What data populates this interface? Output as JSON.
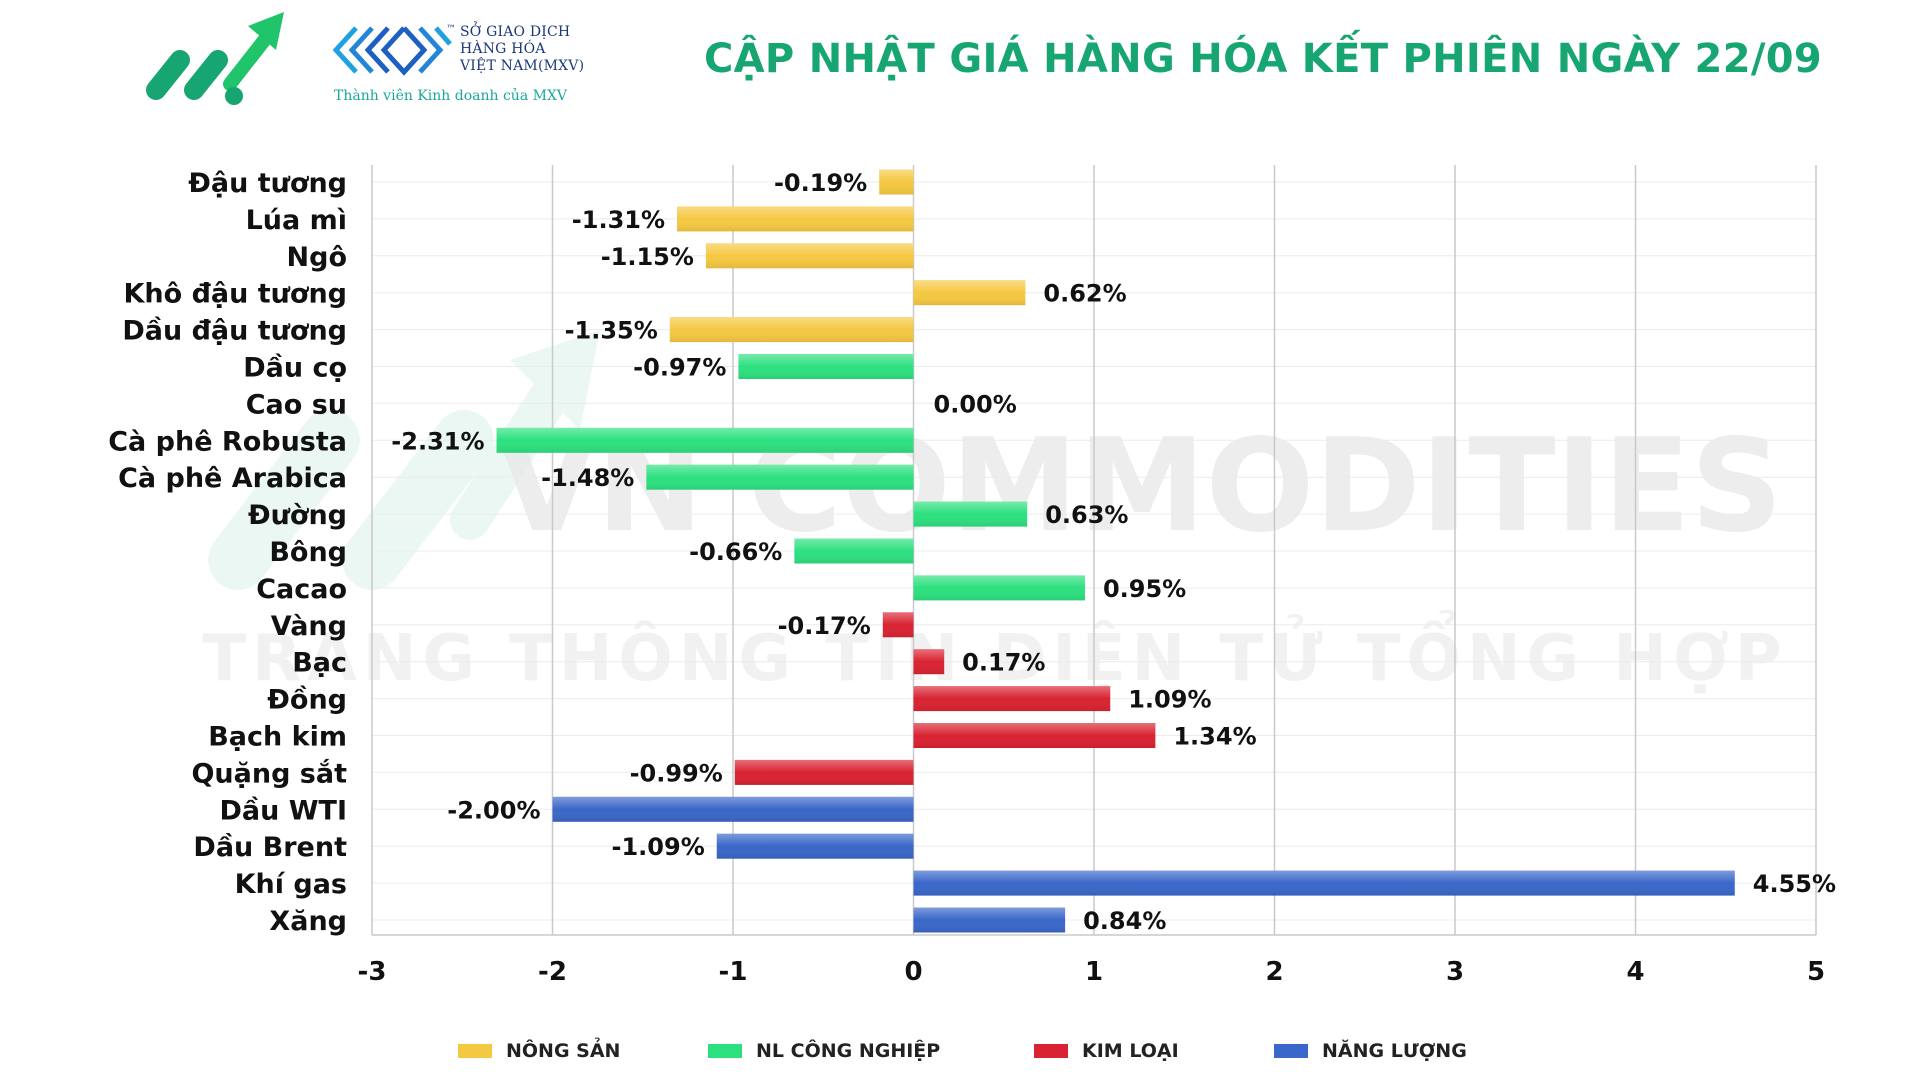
{
  "header": {
    "title": "CẬP NHẬT GIÁ HÀNG HÓA KẾT PHIÊN NGÀY 22/09",
    "mxv_line1": "SỞ GIAO DỊCH",
    "mxv_line2": "HÀNG HÓA",
    "mxv_line3": "VIỆT NAM(MXV)",
    "mxv_tagline": "Thành viên Kinh doanh của MXV",
    "tm": "™"
  },
  "watermark": {
    "line1": "VN COMMODITIES",
    "line2": "TRANG THÔNG TIN ĐIỆN TỬ TỔNG HỢP"
  },
  "colors": {
    "brand_green": "#17a672",
    "nong_san": "#f5c842",
    "nl_cong_nghiep": "#2de07f",
    "kim_loai": "#d92332",
    "nang_luong": "#3a67c9"
  },
  "chart_data": {
    "type": "bar",
    "orientation": "horizontal",
    "title": "CẬP NHẬT GIÁ HÀNG HÓA KẾT PHIÊN NGÀY 22/09",
    "xlim": [
      -3,
      5
    ],
    "xticks": [
      "-3",
      "-2",
      "-1",
      "0",
      "1",
      "2",
      "3",
      "4",
      "5"
    ],
    "grid": true,
    "legend_position": "bottom",
    "groups": [
      {
        "key": "nong_san",
        "name": "NÔNG SẢN"
      },
      {
        "key": "nl_cong_nghiep",
        "name": "NL CÔNG NGHIỆP"
      },
      {
        "key": "kim_loai",
        "name": "KIM LOẠI"
      },
      {
        "key": "nang_luong",
        "name": "NĂNG LƯỢNG"
      }
    ],
    "items": [
      {
        "name": "Đậu tương",
        "value": -0.19,
        "label": "-0.19%",
        "group": "nong_san"
      },
      {
        "name": "Lúa mì",
        "value": -1.31,
        "label": "-1.31%",
        "group": "nong_san"
      },
      {
        "name": "Ngô",
        "value": -1.15,
        "label": "-1.15%",
        "group": "nong_san"
      },
      {
        "name": "Khô đậu tương",
        "value": 0.62,
        "label": "0.62%",
        "group": "nong_san"
      },
      {
        "name": "Dầu đậu tương",
        "value": -1.35,
        "label": "-1.35%",
        "group": "nong_san"
      },
      {
        "name": "Dầu cọ",
        "value": -0.97,
        "label": "-0.97%",
        "group": "nl_cong_nghiep"
      },
      {
        "name": "Cao su",
        "value": 0.0,
        "label": "0.00%",
        "group": "nl_cong_nghiep"
      },
      {
        "name": "Cà phê Robusta",
        "value": -2.31,
        "label": "-2.31%",
        "group": "nl_cong_nghiep"
      },
      {
        "name": "Cà phê Arabica",
        "value": -1.48,
        "label": "-1.48%",
        "group": "nl_cong_nghiep"
      },
      {
        "name": "Đường",
        "value": 0.63,
        "label": "0.63%",
        "group": "nl_cong_nghiep"
      },
      {
        "name": "Bông",
        "value": -0.66,
        "label": "-0.66%",
        "group": "nl_cong_nghiep"
      },
      {
        "name": "Cacao",
        "value": 0.95,
        "label": "0.95%",
        "group": "nl_cong_nghiep"
      },
      {
        "name": "Vàng",
        "value": -0.17,
        "label": "-0.17%",
        "group": "kim_loai"
      },
      {
        "name": "Bạc",
        "value": 0.17,
        "label": "0.17%",
        "group": "kim_loai"
      },
      {
        "name": "Đồng",
        "value": 1.09,
        "label": "1.09%",
        "group": "kim_loai"
      },
      {
        "name": "Bạch kim",
        "value": 1.34,
        "label": "1.34%",
        "group": "kim_loai"
      },
      {
        "name": "Quặng sắt",
        "value": -0.99,
        "label": "-0.99%",
        "group": "kim_loai"
      },
      {
        "name": "Dầu WTI",
        "value": -2.0,
        "label": "-2.00%",
        "group": "nang_luong"
      },
      {
        "name": "Dầu Brent",
        "value": -1.09,
        "label": "-1.09%",
        "group": "nang_luong"
      },
      {
        "name": "Khí gas",
        "value": 4.55,
        "label": "4.55%",
        "group": "nang_luong"
      },
      {
        "name": "Xăng",
        "value": 0.84,
        "label": "0.84%",
        "group": "nang_luong"
      }
    ]
  }
}
